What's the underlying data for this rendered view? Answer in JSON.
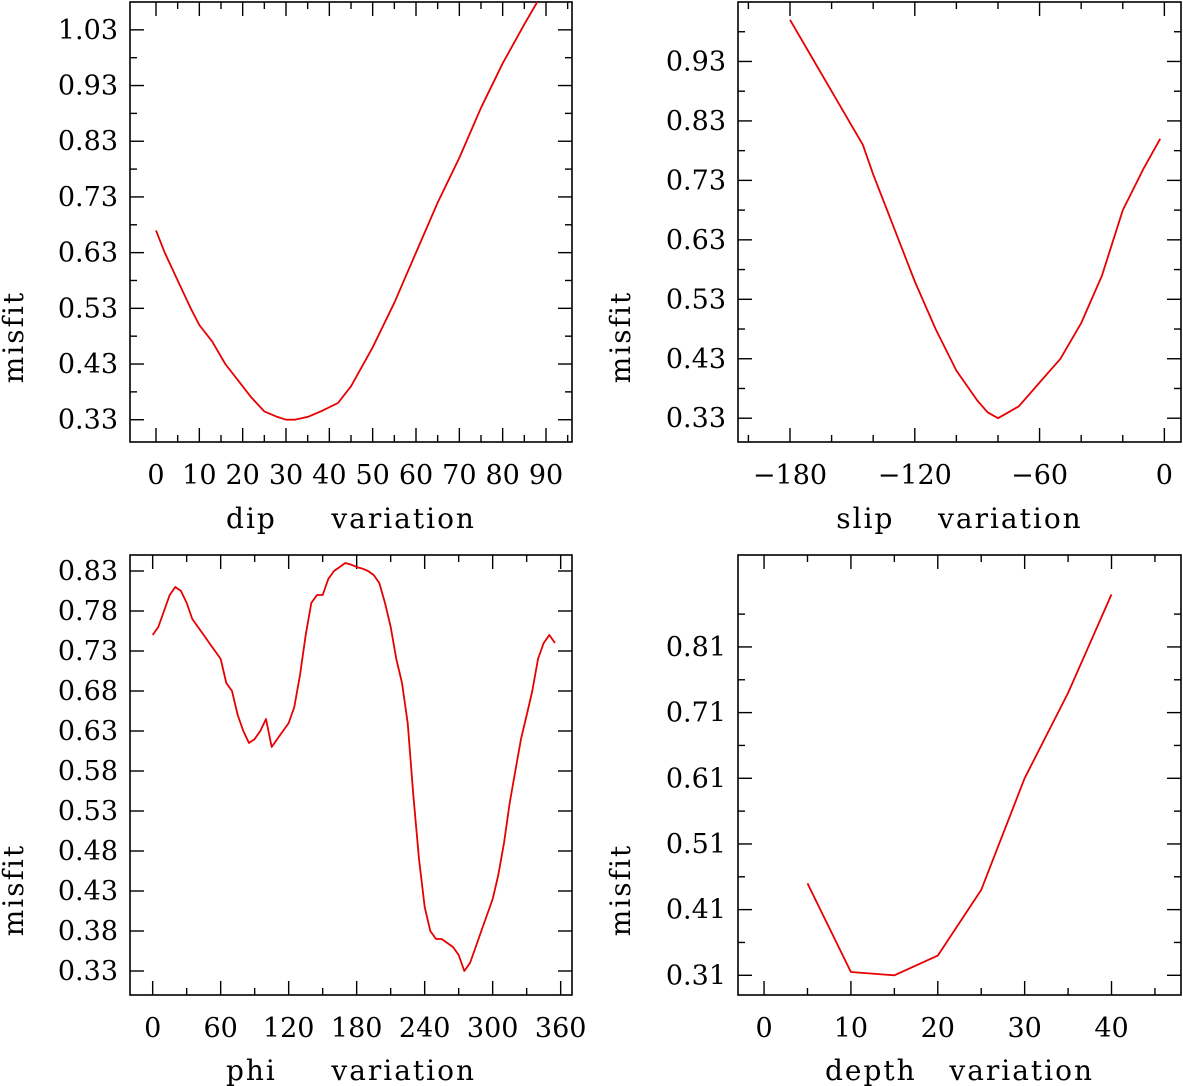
{
  "chart_data": [
    {
      "id": "dip",
      "type": "line",
      "title": "",
      "xlabel": "dip     variation",
      "ylabel": "misfit",
      "xlim": [
        -6,
        96
      ],
      "ylim": [
        0.29,
        1.08
      ],
      "xticks_major": [
        0,
        10,
        20,
        30,
        40,
        50,
        60,
        70,
        80,
        90
      ],
      "xticks_minor": [
        5,
        15,
        25,
        35,
        45,
        55,
        65,
        75,
        85,
        95
      ],
      "xtick_labels": [
        "0",
        "10",
        "20",
        "30",
        "40",
        "50",
        "60",
        "70",
        "80",
        "90"
      ],
      "yticks": [
        0.33,
        0.43,
        0.53,
        0.63,
        0.73,
        0.83,
        0.93,
        1.03
      ],
      "ytick_labels": [
        "0.33",
        "0.43",
        "0.53",
        "0.63",
        "0.73",
        "0.83",
        "0.93",
        "1.03"
      ],
      "yticks_minor": [
        0.38,
        0.48,
        0.58,
        0.68,
        0.78,
        0.88,
        0.98
      ],
      "series": [
        {
          "name": "misfit",
          "color": "#e60000",
          "x": [
            0,
            2,
            5,
            8,
            10,
            13,
            16,
            19,
            22,
            25,
            28,
            30,
            32,
            35,
            38,
            42,
            45,
            50,
            55,
            60,
            65,
            70,
            75,
            80,
            85,
            88
          ],
          "y": [
            0.67,
            0.63,
            0.58,
            0.53,
            0.5,
            0.47,
            0.43,
            0.4,
            0.37,
            0.345,
            0.335,
            0.33,
            0.33,
            0.335,
            0.345,
            0.36,
            0.39,
            0.46,
            0.54,
            0.63,
            0.72,
            0.8,
            0.89,
            0.97,
            1.04,
            1.08
          ]
        }
      ]
    },
    {
      "id": "slip",
      "type": "line",
      "title": "",
      "xlabel": "slip    variation",
      "ylabel": "misfit",
      "xlim": [
        -205,
        8
      ],
      "ylim": [
        0.29,
        1.03
      ],
      "xticks_major": [
        -180,
        -120,
        -60,
        0
      ],
      "xticks_minor": [
        -200,
        -160,
        -140,
        -100,
        -80,
        -40,
        -20
      ],
      "xtick_labels": [
        "−180",
        "−120",
        "−60",
        "0"
      ],
      "yticks": [
        0.33,
        0.43,
        0.53,
        0.63,
        0.73,
        0.83,
        0.93
      ],
      "ytick_labels": [
        "0.33",
        "0.43",
        "0.53",
        "0.63",
        "0.73",
        "0.83",
        "0.93"
      ],
      "yticks_minor": [
        0.38,
        0.48,
        0.58,
        0.68,
        0.78,
        0.88,
        0.98
      ],
      "series": [
        {
          "name": "misfit",
          "color": "#e60000",
          "x": [
            -180,
            -170,
            -160,
            -150,
            -145,
            -140,
            -130,
            -120,
            -110,
            -100,
            -90,
            -85,
            -80,
            -75,
            -70,
            -60,
            -50,
            -40,
            -30,
            -20,
            -10,
            -2
          ],
          "y": [
            1.0,
            0.94,
            0.88,
            0.82,
            0.79,
            0.74,
            0.65,
            0.56,
            0.48,
            0.41,
            0.36,
            0.34,
            0.33,
            0.34,
            0.35,
            0.39,
            0.43,
            0.49,
            0.57,
            0.68,
            0.75,
            0.8
          ]
        }
      ]
    },
    {
      "id": "phi",
      "type": "line",
      "title": "",
      "xlabel": "phi     variation",
      "ylabel": "misfit",
      "xlim": [
        -20,
        370
      ],
      "ylim": [
        0.3,
        0.85
      ],
      "xticks_major": [
        0,
        60,
        120,
        180,
        240,
        300,
        360
      ],
      "xticks_minor": [
        30,
        90,
        150,
        210,
        270,
        330
      ],
      "xtick_labels": [
        "0",
        "60",
        "120",
        "180",
        "240",
        "300",
        "360"
      ],
      "yticks": [
        0.33,
        0.38,
        0.43,
        0.48,
        0.53,
        0.58,
        0.63,
        0.68,
        0.73,
        0.78,
        0.83
      ],
      "ytick_labels": [
        "0.33",
        "0.38",
        "0.43",
        "0.48",
        "0.53",
        "0.58",
        "0.63",
        "0.68",
        "0.73",
        "0.78",
        "0.83"
      ],
      "yticks_minor": [],
      "series": [
        {
          "name": "misfit",
          "color": "#e60000",
          "x": [
            0,
            5,
            10,
            15,
            20,
            25,
            30,
            35,
            40,
            45,
            50,
            55,
            60,
            65,
            70,
            75,
            80,
            85,
            90,
            95,
            100,
            105,
            110,
            115,
            120,
            125,
            130,
            135,
            140,
            145,
            150,
            155,
            160,
            165,
            170,
            175,
            180,
            185,
            190,
            195,
            200,
            205,
            210,
            215,
            220,
            225,
            230,
            235,
            240,
            245,
            250,
            255,
            260,
            265,
            270,
            275,
            280,
            285,
            290,
            295,
            300,
            305,
            310,
            315,
            320,
            325,
            330,
            335,
            340,
            345,
            350,
            355
          ],
          "y": [
            0.75,
            0.76,
            0.78,
            0.8,
            0.81,
            0.805,
            0.79,
            0.77,
            0.76,
            0.75,
            0.74,
            0.73,
            0.72,
            0.69,
            0.68,
            0.65,
            0.63,
            0.615,
            0.62,
            0.63,
            0.645,
            0.61,
            0.62,
            0.63,
            0.64,
            0.66,
            0.7,
            0.75,
            0.79,
            0.8,
            0.8,
            0.82,
            0.83,
            0.835,
            0.84,
            0.838,
            0.835,
            0.833,
            0.83,
            0.825,
            0.815,
            0.79,
            0.76,
            0.72,
            0.69,
            0.64,
            0.55,
            0.47,
            0.41,
            0.38,
            0.37,
            0.37,
            0.365,
            0.36,
            0.35,
            0.33,
            0.34,
            0.36,
            0.38,
            0.4,
            0.42,
            0.45,
            0.49,
            0.54,
            0.58,
            0.62,
            0.65,
            0.68,
            0.72,
            0.74,
            0.75,
            0.74
          ],
          "x_override": true
        }
      ]
    },
    {
      "id": "depth",
      "type": "line",
      "title": "",
      "xlabel": "depth   variation",
      "ylabel": "misfit",
      "xlim": [
        -3,
        48
      ],
      "ylim": [
        0.28,
        0.95
      ],
      "xticks_major": [
        0,
        10,
        20,
        30,
        40
      ],
      "xticks_minor": [
        5,
        15,
        25,
        35,
        45
      ],
      "xtick_labels": [
        "0",
        "10",
        "20",
        "30",
        "40"
      ],
      "yticks": [
        0.31,
        0.41,
        0.51,
        0.61,
        0.71,
        0.81
      ],
      "ytick_labels": [
        "0.31",
        "0.41",
        "0.51",
        "0.61",
        "0.71",
        "0.81"
      ],
      "yticks_minor": [
        0.36,
        0.46,
        0.56,
        0.66,
        0.76,
        0.86
      ],
      "series": [
        {
          "name": "misfit",
          "color": "#e60000",
          "x": [
            5,
            10,
            15,
            20,
            25,
            30,
            35,
            40
          ],
          "y": [
            0.45,
            0.315,
            0.31,
            0.34,
            0.44,
            0.61,
            0.74,
            0.89
          ]
        }
      ]
    }
  ]
}
